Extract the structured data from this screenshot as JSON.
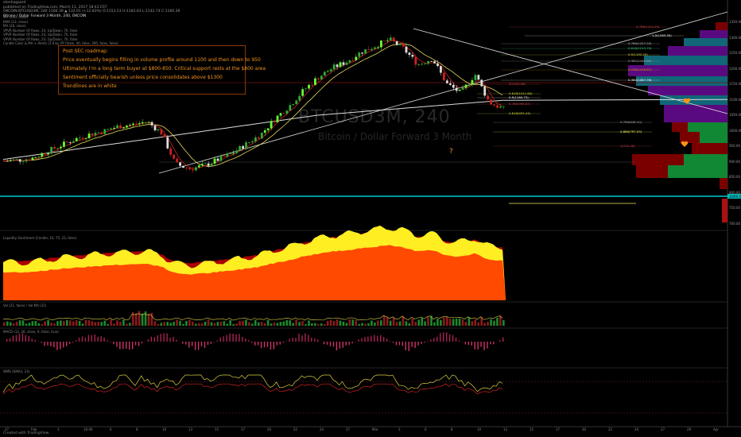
{
  "header": {
    "author": "elonhagaard",
    "published": "published on TradingView.com, March 11, 2017 18:43 EST",
    "symbol_line": "OKCOIN:BTCUSD3M, 240 1160.39 ▲ 132.01 (+12.83%) O:1153.53 H:1183.63 L:1142.74 C:1160.39",
    "title": "Bitcoin / Dollar Forward 3 Month, 240, OKCOIN"
  },
  "indicators": [
    "MA (200, close)",
    "EMA (12, close)",
    "MA (26, close)",
    "VPVR Number Of Rows, 24, Up/Down, 70, false",
    "VPVR Number Of Rows, 24, Up/Down, 70, false",
    "VPVR Number Of Rows, 24, Up/Down, 70, false",
    "Candle Color & MA + Alerts (2.0 by VP (false, 40, false, 260, false, false)"
  ],
  "watermark": "BTCUSD3M, 240",
  "watermark_sub": "Bitcoin / Dollar Forward 3 Month",
  "question": "?",
  "note": {
    "lines": [
      "Post SEC roadmap:",
      "Price eventually begins filling in volume profile around 1100 and then down to 950",
      "Ultimately I'm a long term buyer at $800-850. Critical support rests at the $800 area",
      "Sentiment officially bearish unless price consolidates above $1300",
      "Trendlines are in white"
    ]
  },
  "panes": {
    "p1": "Liquidity Sentiment (Candle, 10, 75, 23, false)",
    "p2": "Vol (21, false) / Vol MA (21)",
    "p3": "MACD (12, 26, close, 9, false, true)",
    "p4": "WMS (SMA3, 13)"
  },
  "right_axis": [
    "1350.00",
    "1300.00",
    "1250.00",
    "1200.00",
    "1150.00",
    "1100.00",
    "1050.00",
    "1000.00",
    "950.00",
    "900.00",
    "850.00",
    "800.00",
    "750.00",
    "700.00"
  ],
  "current_price": "1000.06",
  "fib_labels": [
    {
      "t": "0.786(1104.29)",
      "c": "#cc4444"
    },
    {
      "t": "1.0(1283.30)",
      "c": "#ffffff"
    },
    {
      "t": "0.786(1257.20)",
      "c": "#bbbbbb"
    },
    {
      "t": "0.618(1213.75)",
      "c": "#44cc88"
    },
    {
      "t": "0.5(1192.29)",
      "c": "#dddd44"
    },
    {
      "t": "0.382(1160.85)",
      "c": "#aaaaaa"
    },
    {
      "t": "0.236(1106.87)",
      "c": "#dd8800"
    },
    {
      "t": "0.382(1087.76)",
      "c": "#ffffff"
    },
    {
      "t": "0(1024.58)",
      "c": "#cc4444"
    },
    {
      "t": "0.618(1011.60)",
      "c": "#dddd44"
    },
    {
      "t": "0.5(1160.73)",
      "c": "#ffffff"
    },
    {
      "t": "0.786(999.87)",
      "c": "#cc4444"
    },
    {
      "t": "0.618(953.43)",
      "c": "#dddd44"
    },
    {
      "t": "0.786(848.10)",
      "c": "#aaaaaa"
    },
    {
      "t": "0.886(797.03)",
      "c": "#ffff66"
    },
    {
      "t": "1(741.28)",
      "c": "#cc4444"
    }
  ],
  "bottom_axis": [
    "27",
    "Feb",
    "3",
    "10:00",
    "6",
    "8",
    "10",
    "13",
    "15",
    "17",
    "20",
    "22",
    "24",
    "27",
    "Mar",
    "3",
    "6",
    "8",
    "10",
    "13",
    "15",
    "17",
    "20",
    "22",
    "24",
    "27",
    "29",
    "Apr"
  ],
  "footer": "Created with TradingView",
  "chart_data": {
    "type": "line",
    "x": [
      0,
      2,
      4,
      6,
      8,
      10,
      12,
      14,
      16,
      18,
      20,
      22,
      24,
      26,
      28,
      30,
      32,
      34,
      36,
      38,
      40,
      42,
      44,
      46,
      48,
      50,
      52,
      54,
      56,
      58,
      60,
      62,
      64,
      66,
      68,
      70
    ],
    "values": [
      915,
      918,
      925,
      945,
      965,
      985,
      1000,
      1010,
      1025,
      1030,
      1040,
      1005,
      905,
      890,
      900,
      920,
      940,
      970,
      1000,
      1050,
      1090,
      1140,
      1180,
      1210,
      1230,
      1260,
      1280,
      1300,
      1270,
      1220,
      1240,
      1160,
      1130,
      1190,
      1100,
      1080
    ],
    "ylim": [
      700,
      1400
    ],
    "current": 1000.06
  }
}
